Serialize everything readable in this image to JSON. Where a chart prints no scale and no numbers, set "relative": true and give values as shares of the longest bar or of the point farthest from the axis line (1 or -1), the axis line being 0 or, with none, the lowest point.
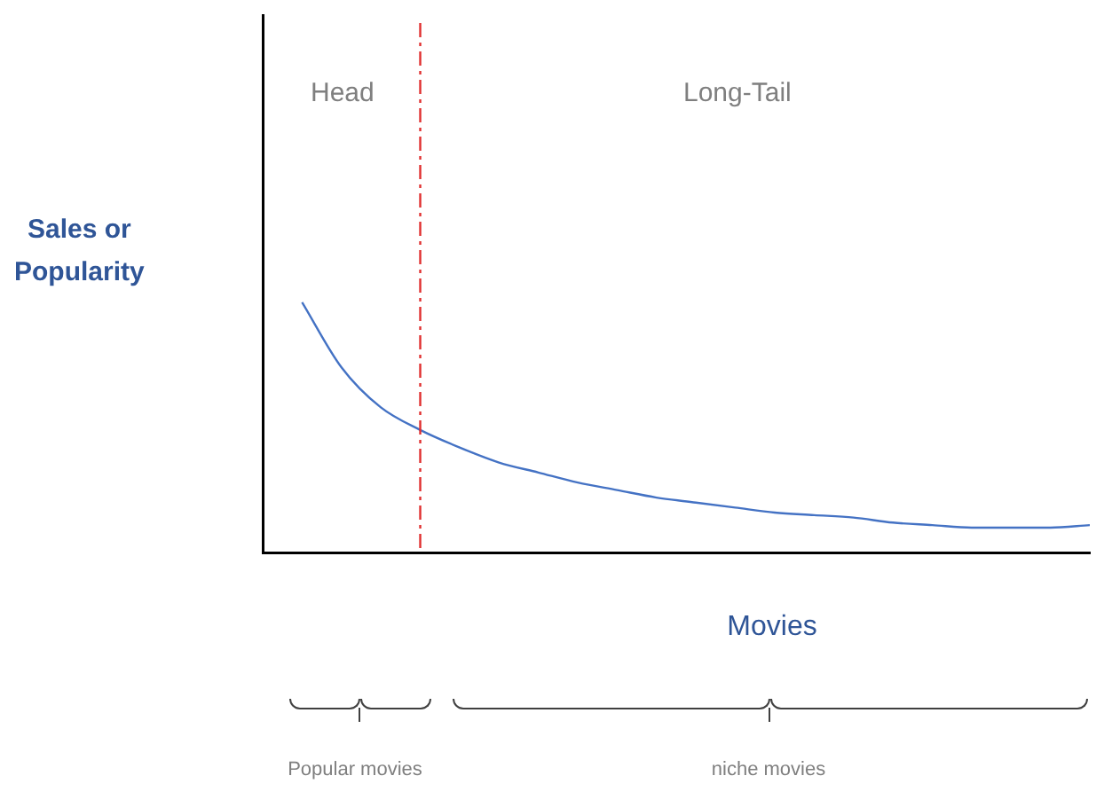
{
  "chart_data": {
    "type": "line",
    "relative": true,
    "categories": [
      null,
      null,
      null,
      null,
      null,
      null,
      null,
      null,
      null,
      null,
      null,
      null,
      null,
      null,
      null,
      null,
      null,
      null,
      null,
      null,
      null,
      null
    ],
    "series": [
      {
        "color": "#4472c4",
        "values": [
          null,
          1,
          0.74,
          0.58,
          0.49,
          0.42,
          0.36,
          0.32,
          0.28,
          0.25,
          0.22,
          0.2,
          0.18,
          0.16,
          0.15,
          0.14,
          0.12,
          0.11,
          0.1,
          0.1,
          0.1,
          0.11
        ]
      }
    ],
    "xlabel": "Movies",
    "ylabel": "Sales or Popularity",
    "annotations": [
      "Head",
      "Long-Tail",
      "Popular movies",
      "niche movies"
    ],
    "grid": false,
    "legend": false,
    "marker": "none"
  }
}
